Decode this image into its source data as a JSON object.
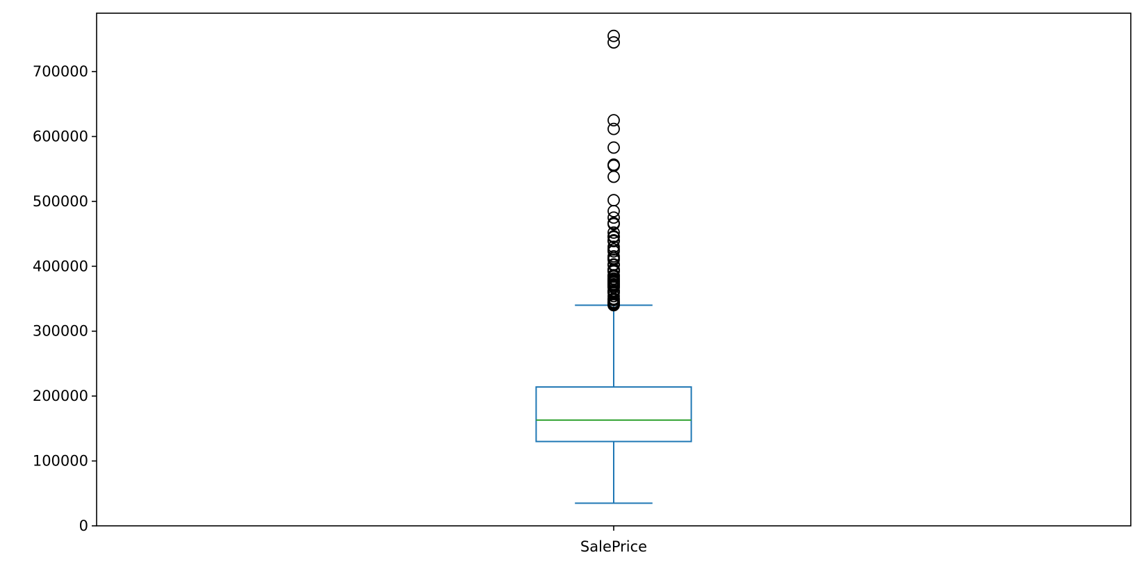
{
  "chart_data": {
    "type": "box",
    "categories": [
      "SalePrice"
    ],
    "ylim": [
      0,
      790000
    ],
    "yticks": [
      0,
      100000,
      200000,
      300000,
      400000,
      500000,
      600000,
      700000
    ],
    "ytick_labels": [
      "0",
      "100000",
      "200000",
      "300000",
      "400000",
      "500000",
      "600000",
      "700000"
    ],
    "grid": false,
    "boxes": [
      {
        "name": "SalePrice",
        "whisker_low": 34900,
        "q1": 129975,
        "median": 163000,
        "q3": 214000,
        "whisker_high": 340000,
        "fliers": [
          755000,
          745000,
          625000,
          611657,
          582933,
          556581,
          555000,
          538000,
          501837,
          485000,
          475000,
          466500,
          465000,
          451950,
          446261,
          445000,
          440000,
          438780,
          430000,
          426000,
          423000,
          415298,
          412500,
          410000,
          402861,
          402000,
          395192,
          394617,
          392500,
          392000,
          386250,
          385000,
          383970,
          381000,
          380000,
          377500,
          377426,
          376162,
          375000,
          372500,
          372402,
          370878,
          369900,
          368000,
          367294,
          362500,
          361919,
          360000,
          359100,
          354000,
          350000,
          348000,
          345000,
          344133,
          342643,
          341000,
          340000
        ]
      }
    ],
    "colors": {
      "box": "#1f77b4",
      "median": "#2ca02c",
      "flier": "#000000",
      "axes": "#000000"
    }
  }
}
